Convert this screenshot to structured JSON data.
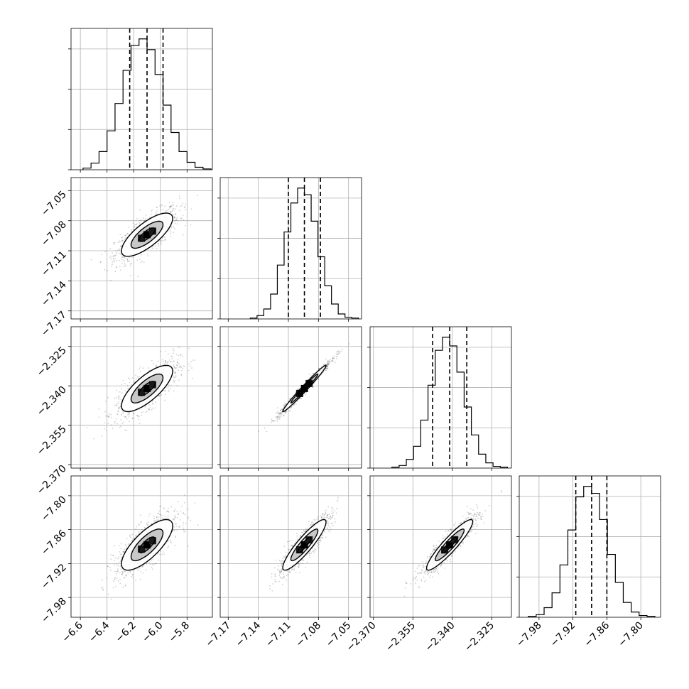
{
  "chart_data": {
    "type": "corner",
    "title": "",
    "grid": true,
    "params": [
      {
        "name": "",
        "range": [
          -6.67,
          -5.61
        ],
        "ticks": [
          -6.6,
          -6.4,
          -6.2,
          -6.0,
          -5.8
        ],
        "tick_labels": [
          "−6.6",
          "−6.4",
          "−6.2",
          "−6.0",
          "−5.8"
        ],
        "mean": -6.1,
        "sigma": 0.12,
        "quantiles": [
          -6.23,
          -6.1,
          -5.98
        ],
        "hist_counts": [
          2,
          8,
          22,
          47,
          80,
          120,
          150,
          158,
          145,
          115,
          78,
          45,
          22,
          9,
          3,
          1
        ]
      },
      {
        "name": "",
        "range": [
          -7.178,
          -7.037
        ],
        "ticks": [
          -7.17,
          -7.14,
          -7.11,
          -7.08,
          -7.05
        ],
        "tick_labels": [
          "−7.17",
          "−7.14",
          "−7.11",
          "−7.08",
          "−7.05"
        ],
        "mean": -7.094,
        "sigma": 0.0135,
        "quantiles": [
          -7.11,
          -7.094,
          -7.078
        ],
        "hist_counts": [
          1,
          4,
          12,
          30,
          65,
          105,
          140,
          158,
          150,
          118,
          75,
          40,
          18,
          6,
          2,
          1
        ]
      },
      {
        "name": "",
        "range": [
          -2.3713,
          -2.3175
        ],
        "ticks": [
          -2.37,
          -2.355,
          -2.34,
          -2.325
        ],
        "tick_labels": [
          "−2.370",
          "−2.355",
          "−2.340",
          "−2.325"
        ],
        "mean": -2.341,
        "sigma": 0.0055,
        "quantiles": [
          -2.3475,
          -2.341,
          -2.3345
        ],
        "hist_counts": [
          1,
          3,
          10,
          25,
          55,
          95,
          135,
          150,
          140,
          110,
          70,
          38,
          16,
          6,
          2,
          1
        ]
      },
      {
        "name": "",
        "range": [
          -8.015,
          -7.765
        ],
        "ticks": [
          -7.98,
          -7.92,
          -7.86,
          -7.8
        ],
        "tick_labels": [
          "−7.98",
          "−7.92",
          "−7.86",
          "−7.80"
        ],
        "mean": -7.887,
        "sigma": 0.028,
        "quantiles": [
          -7.915,
          -7.887,
          -7.86
        ],
        "hist_counts": [
          1,
          3,
          11,
          28,
          60,
          100,
          138,
          150,
          142,
          112,
          72,
          40,
          17,
          6,
          2,
          1
        ]
      }
    ],
    "correlations": [
      [
        1,
        0.75,
        0.75,
        0.75
      ],
      [
        0.75,
        1,
        0.985,
        0.9
      ],
      [
        0.75,
        0.985,
        1,
        0.92
      ],
      [
        0.75,
        0.9,
        0.92,
        1
      ]
    ],
    "contour_levels": [
      0.5,
      1.0,
      1.6
    ],
    "n_scatter_points": 900
  }
}
